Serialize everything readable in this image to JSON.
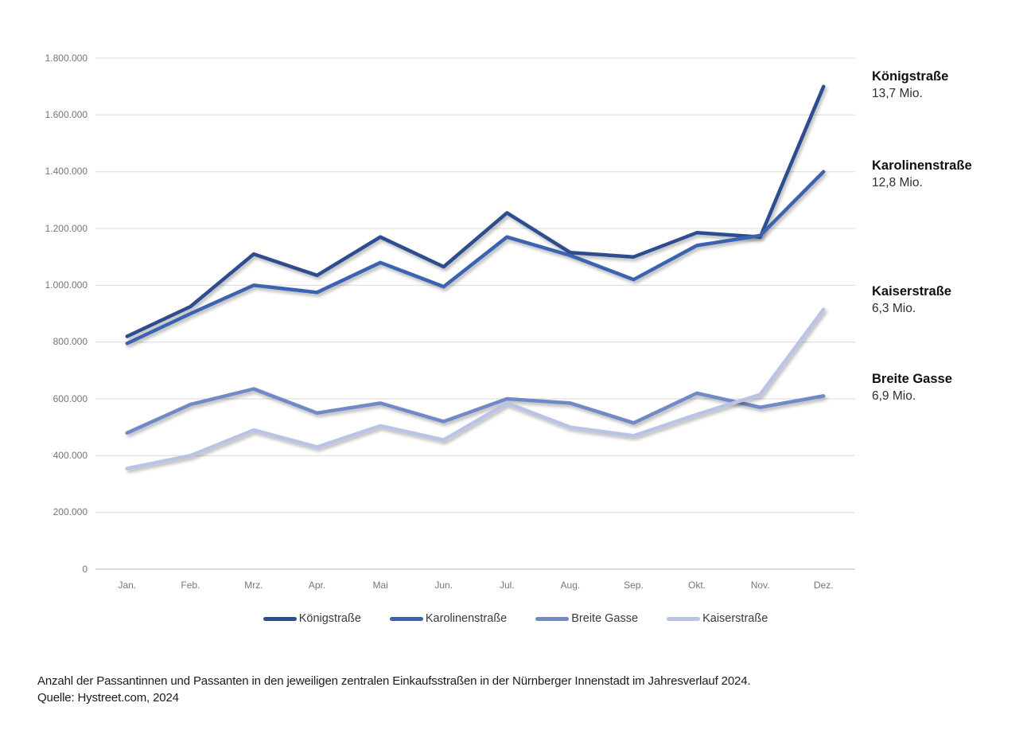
{
  "chart_data": {
    "type": "line",
    "title": "",
    "categories": [
      "Jan.",
      "Feb.",
      "Mrz.",
      "Apr.",
      "Mai",
      "Jun.",
      "Jul.",
      "Aug.",
      "Sep.",
      "Okt.",
      "Nov.",
      "Dez."
    ],
    "y_axis": {
      "min": 0,
      "max": 1800000,
      "step": 200000,
      "tick_labels": [
        "1.800.000",
        "1.600.000",
        "1.400.000",
        "1.200.000",
        "1.000.000",
        "800.000",
        "600.000",
        "400.000",
        "200.000",
        "0"
      ]
    },
    "grid": true,
    "legend_position": "bottom",
    "series": [
      {
        "name": "Königstraße",
        "color": "#2E4D8E",
        "values": [
          820000,
          925000,
          1110000,
          1035000,
          1170000,
          1065000,
          1255000,
          1115000,
          1100000,
          1185000,
          1170000,
          1700000
        ]
      },
      {
        "name": "Karolinenstraße",
        "color": "#3B64AF",
        "values": [
          795000,
          900000,
          1000000,
          975000,
          1080000,
          995000,
          1170000,
          1105000,
          1020000,
          1140000,
          1175000,
          1400000
        ]
      },
      {
        "name": "Breite Gasse",
        "color": "#7289C7",
        "values": [
          480000,
          580000,
          635000,
          550000,
          585000,
          520000,
          600000,
          585000,
          515000,
          620000,
          570000,
          610000
        ]
      },
      {
        "name": "Kaiserstraße",
        "color": "#B8C3E5",
        "values": [
          355000,
          400000,
          490000,
          430000,
          505000,
          455000,
          585000,
          500000,
          470000,
          545000,
          615000,
          915000
        ]
      }
    ]
  },
  "annotations": [
    {
      "name": "Königstraße",
      "value": "13,7 Mio."
    },
    {
      "name": "Karolinenstraße",
      "value": "12,8 Mio."
    },
    {
      "name": "Kaiserstraße",
      "value": "6,3 Mio."
    },
    {
      "name": "Breite Gasse",
      "value": "6,9 Mio."
    }
  ],
  "caption": {
    "line1": "Anzahl der Passantinnen und Passanten in den jeweiligen zentralen Einkaufsstraßen in der Nürnberger Innenstadt im Jahresverlauf 2024.",
    "line2": "Quelle: Hystreet.com, 2024"
  }
}
